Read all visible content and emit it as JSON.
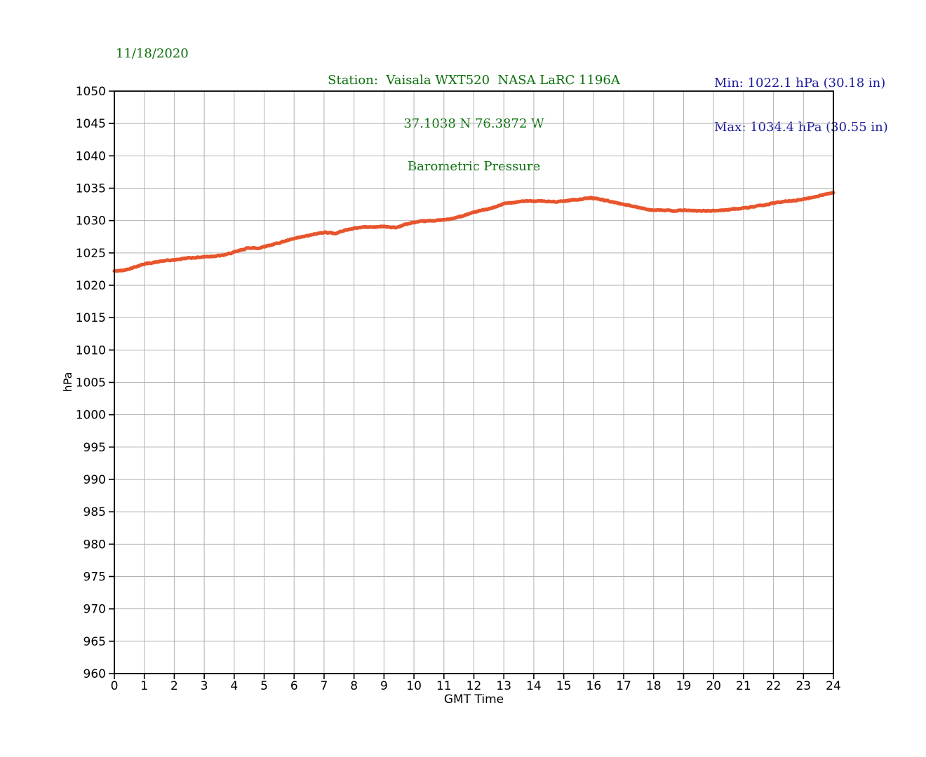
{
  "header": {
    "date": "11/18/2020",
    "station_line": "Station:  Vaisala WXT520  NASA LaRC 1196A",
    "coords_line": "37.1038 N 76.3872 W",
    "title_line": "Barometric Pressure",
    "min_label": "Min: 1022.1 hPa (30.18 in)",
    "max_label": "Max: 1034.4 hPa (30.55 in)"
  },
  "colors": {
    "line": "#E8542C",
    "grid": "#b2b2b2",
    "axis": "#000000",
    "tick_text": "#000000",
    "header_green": "#0A700A",
    "header_blue": "#1C1C9C",
    "background": "#ffffff"
  },
  "axes": {
    "xlabel": "GMT Time",
    "ylabel": "hPa",
    "xlim": [
      0,
      24
    ],
    "ylim": [
      960,
      1050
    ],
    "x_tick_step": 1,
    "y_tick_step": 5,
    "grid": true
  },
  "chart_data": {
    "type": "line",
    "title": "Barometric Pressure",
    "subtitle": "Station: Vaisala WXT520  NASA LaRC 1196A, 37.1038 N 76.3872 W",
    "date": "11/18/2020",
    "xlabel": "GMT Time",
    "ylabel": "hPa",
    "xlim": [
      0,
      24
    ],
    "ylim": [
      960,
      1050
    ],
    "legend": "none",
    "grid": true,
    "series_name": "Barometric Pressure (hPa)",
    "min_hpa": 1022.1,
    "max_hpa": 1034.4,
    "min_inches": 30.18,
    "max_inches": 30.55,
    "x": [
      0,
      0.3,
      0.6,
      1,
      1.3,
      1.7,
      2,
      2.4,
      2.8,
      3,
      3.3,
      3.6,
      4,
      4.2,
      4.5,
      4.8,
      5,
      5.3,
      5.6,
      6,
      6.3,
      6.6,
      7,
      7.2,
      7.4,
      7.6,
      8,
      8.3,
      8.7,
      9,
      9.2,
      9.4,
      9.7,
      10,
      10.3,
      10.7,
      11,
      11.3,
      11.6,
      12,
      12.3,
      12.6,
      13,
      13.3,
      13.6,
      14,
      14.3,
      14.6,
      15,
      15.3,
      15.6,
      15.9,
      16.1,
      16.4,
      16.7,
      17,
      17.3,
      17.6,
      18,
      18.3,
      18.7,
      19,
      19.3,
      19.7,
      20,
      20.3,
      20.7,
      21,
      21.3,
      21.7,
      22,
      22.3,
      22.7,
      23,
      23.3,
      23.6,
      24
    ],
    "y": [
      1022.2,
      1022.3,
      1022.7,
      1023.3,
      1023.5,
      1023.8,
      1023.9,
      1024.2,
      1024.3,
      1024.4,
      1024.5,
      1024.6,
      1025.1,
      1025.4,
      1025.8,
      1025.7,
      1026.0,
      1026.3,
      1026.7,
      1027.2,
      1027.5,
      1027.8,
      1028.2,
      1028.1,
      1028.0,
      1028.4,
      1028.8,
      1029.0,
      1029.0,
      1029.1,
      1029.0,
      1028.9,
      1029.4,
      1029.7,
      1029.9,
      1030.0,
      1030.1,
      1030.3,
      1030.7,
      1031.3,
      1031.6,
      1031.9,
      1032.6,
      1032.8,
      1033.0,
      1033.0,
      1033.0,
      1032.9,
      1033.0,
      1033.2,
      1033.3,
      1033.5,
      1033.4,
      1033.1,
      1032.8,
      1032.5,
      1032.2,
      1031.9,
      1031.6,
      1031.6,
      1031.5,
      1031.6,
      1031.5,
      1031.5,
      1031.5,
      1031.6,
      1031.8,
      1031.9,
      1032.1,
      1032.4,
      1032.7,
      1032.9,
      1033.1,
      1033.3,
      1033.6,
      1033.9,
      1034.35
    ]
  }
}
